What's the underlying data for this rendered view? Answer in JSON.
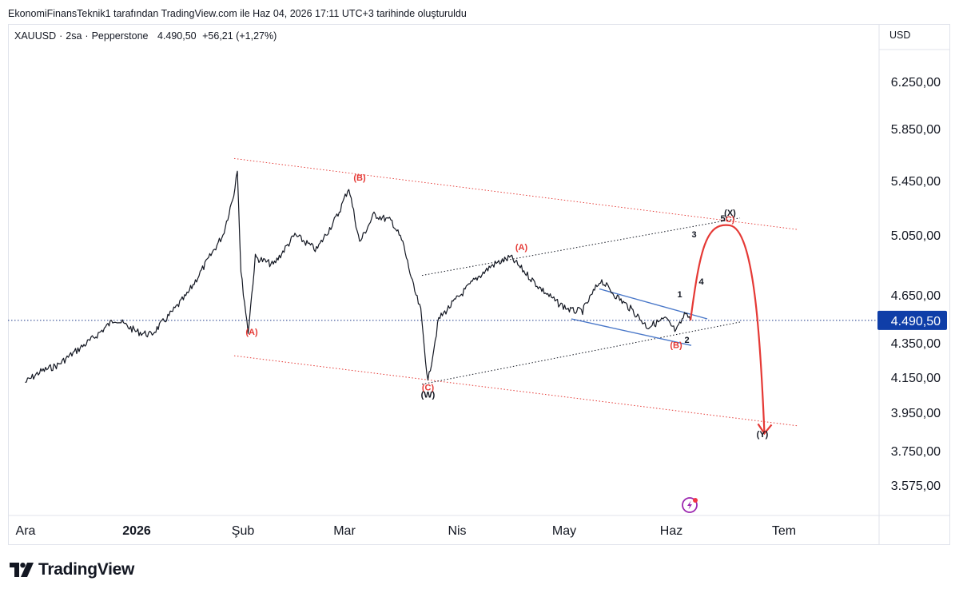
{
  "caption": "EkonomiFinansTeknik1 tarafından TradingView.com ile Haz 04, 2026 17:11 UTC+3 tarihinde oluşturuldu",
  "symbol": {
    "name": "XAUUSD",
    "separator": "·",
    "interval": "2sa",
    "source": "Pepperstone",
    "price": "4.490,50",
    "change": "+56,21 (+1,27%)"
  },
  "currency": "USD",
  "logo_text": "TradingView",
  "colors": {
    "price_line": "#1e3a8a",
    "price_badge": "#0f3ea8",
    "wave_red": "#e53935",
    "channel_blue": "#4a78c9",
    "candles": "#131722"
  },
  "chart_data": {
    "type": "line",
    "title": "",
    "xlabel": "",
    "ylabel": "",
    "x_ticks": [
      "Ara",
      "2026",
      "Şub",
      "Mar",
      "Nis",
      "May",
      "Haz",
      "Tem"
    ],
    "y_ticks": [
      "6.250,00",
      "5.850,00",
      "5.450,00",
      "5.050,00",
      "4.650,00",
      "4.350,00",
      "4.150,00",
      "3.950,00",
      "3.750,00",
      "3.575,00"
    ],
    "y_tick_values": [
      6250,
      5850,
      5450,
      5050,
      4650,
      4350,
      4150,
      3950,
      3750,
      3575
    ],
    "last_price_label": "4.490,50",
    "last_price": 4490.5,
    "series": [
      {
        "x": [
          "2025-12-01",
          "2025-12-05",
          "2025-12-10",
          "2025-12-15",
          "2025-12-20",
          "2025-12-26",
          "2026-01-01",
          "2026-01-05",
          "2026-01-10",
          "2026-01-15",
          "2026-01-20",
          "2026-01-25",
          "2026-01-28",
          "2026-01-29",
          "2026-01-30",
          "2026-02-01",
          "2026-02-03",
          "2026-02-08",
          "2026-02-14",
          "2026-02-20",
          "2026-02-26",
          "2026-03-01",
          "2026-03-04",
          "2026-03-08",
          "2026-03-13",
          "2026-03-16",
          "2026-03-19",
          "2026-03-21",
          "2026-03-23",
          "2026-03-26",
          "2026-03-30",
          "2026-04-05",
          "2026-04-10",
          "2026-04-15",
          "2026-04-19",
          "2026-04-23",
          "2026-04-28",
          "2026-05-02",
          "2026-05-05",
          "2026-05-10",
          "2026-05-14",
          "2026-05-19",
          "2026-05-23",
          "2026-05-28",
          "2026-05-31",
          "2026-06-03",
          "2026-06-04"
        ],
        "values": [
          4120,
          4180,
          4220,
          4300,
          4380,
          4500,
          4420,
          4400,
          4520,
          4650,
          4850,
          5050,
          5350,
          5550,
          4800,
          4420,
          4900,
          4850,
          5050,
          4950,
          5200,
          5400,
          5000,
          5200,
          5150,
          5000,
          4700,
          4550,
          4120,
          4500,
          4600,
          4750,
          4850,
          4900,
          4800,
          4700,
          4600,
          4550,
          4550,
          4750,
          4650,
          4550,
          4450,
          4500,
          4420,
          4550,
          4490.5
        ]
      }
    ],
    "annotations": [
      {
        "text": "(A)",
        "color": "red",
        "x": "2026-02-02",
        "y": 4400
      },
      {
        "text": "(B)",
        "color": "red",
        "x": "2026-03-04",
        "y": 5450
      },
      {
        "text": "(C)",
        "color": "red",
        "x": "2026-03-23",
        "y": 4075
      },
      {
        "text": "(W)",
        "color": "black",
        "x": "2026-03-23",
        "y": 4035
      },
      {
        "text": "(A)",
        "color": "red",
        "x": "2026-04-18",
        "y": 4950
      },
      {
        "text": "(B)",
        "color": "red",
        "x": "2026-05-31",
        "y": 4320
      },
      {
        "text": "1",
        "color": "black",
        "x": "2026-06-01",
        "y": 4635
      },
      {
        "text": "2",
        "color": "black",
        "x": "2026-06-03",
        "y": 4350
      },
      {
        "text": "3",
        "color": "black",
        "x": "2026-06-05",
        "y": 5035
      },
      {
        "text": "4",
        "color": "black",
        "x": "2026-06-07",
        "y": 4720
      },
      {
        "text": "5",
        "color": "black",
        "x": "2026-06-13",
        "y": 5150
      },
      {
        "text": "C)",
        "color": "red",
        "x": "2026-06-15",
        "y": 5143
      },
      {
        "text": "(X)",
        "color": "black",
        "x": "2026-06-15",
        "y": 5190
      },
      {
        "text": "(Y)",
        "color": "black",
        "x": "2026-06-24",
        "y": 3820
      }
    ],
    "grid": false,
    "legend": "none"
  }
}
